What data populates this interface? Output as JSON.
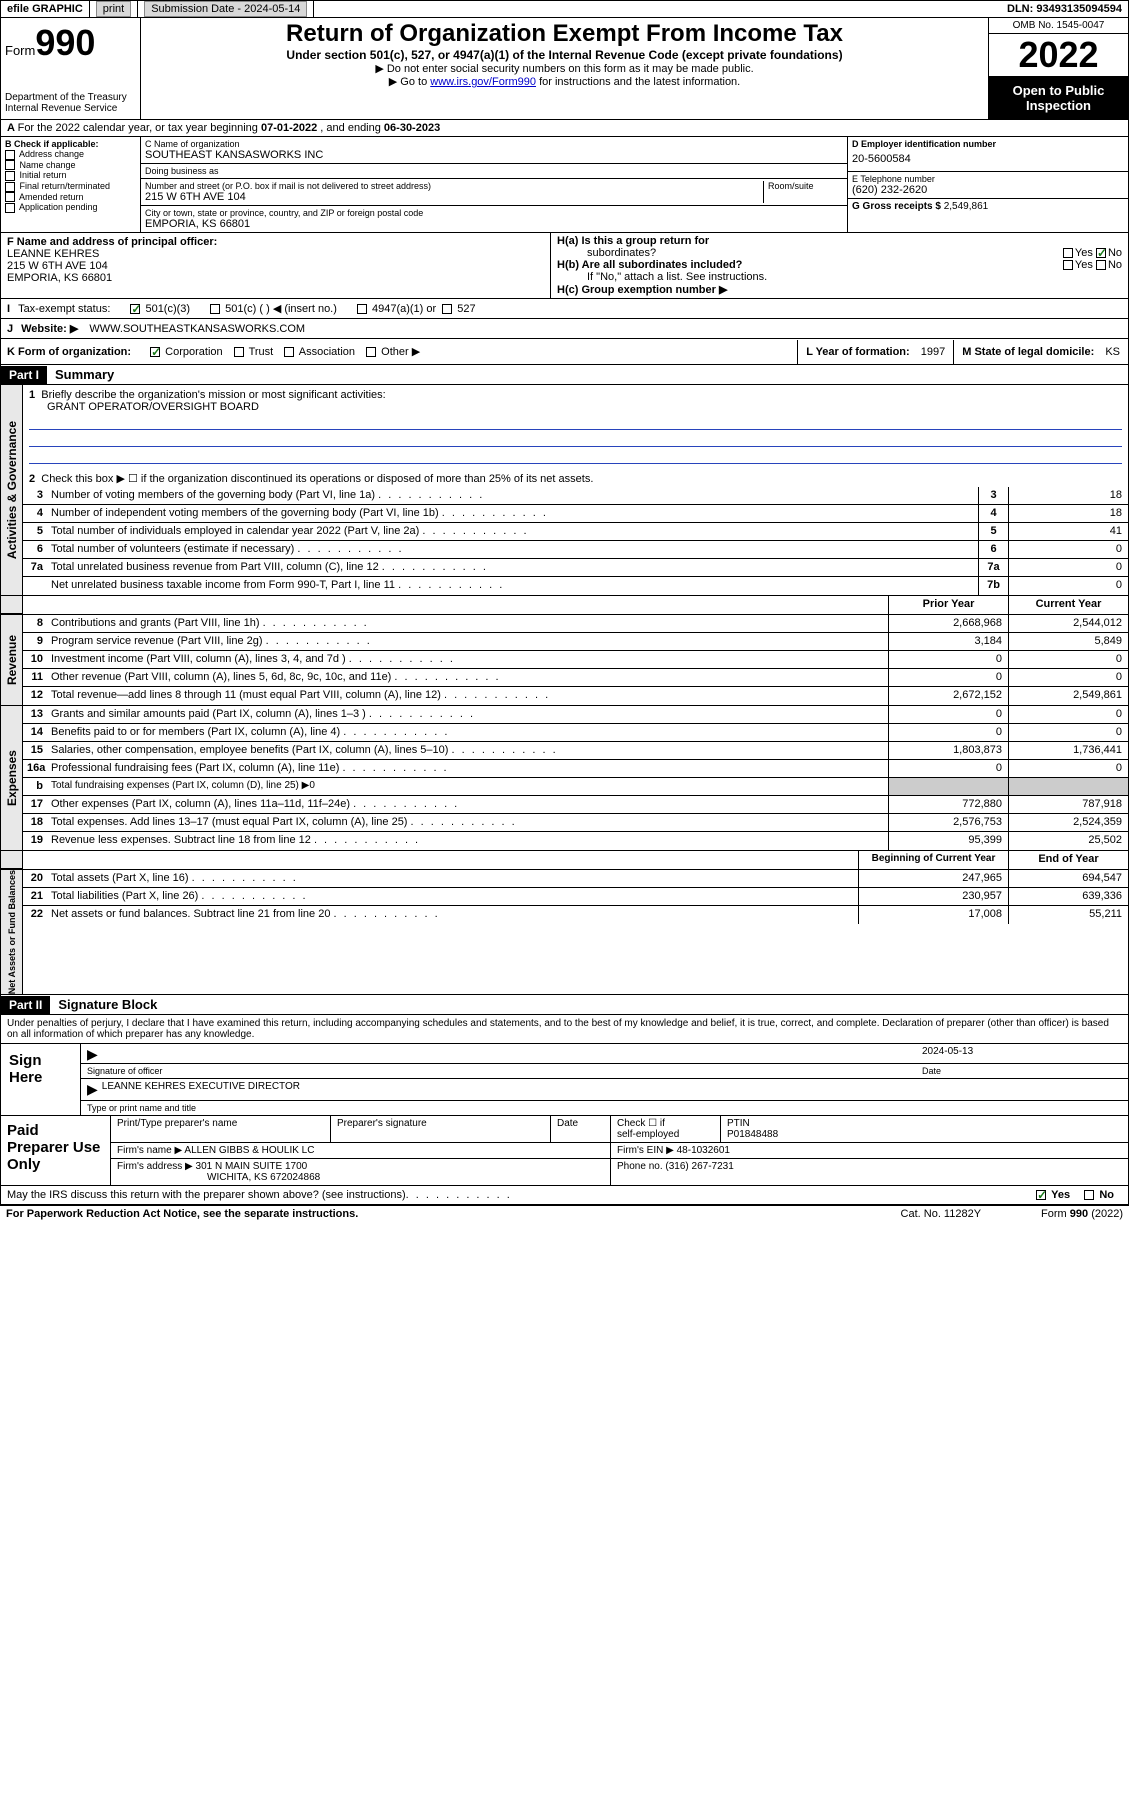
{
  "topbar": {
    "efile": "efile GRAPHIC",
    "print": "print",
    "subdate_lbl": "Submission Date - ",
    "subdate": "2024-05-14",
    "dln_lbl": "DLN: ",
    "dln": "93493135094594"
  },
  "header": {
    "form_word": "Form",
    "form_num": "990",
    "title": "Return of Organization Exempt From Income Tax",
    "sub": "Under section 501(c), 527, or 4947(a)(1) of the Internal Revenue Code (except private foundations)",
    "note1": "▶ Do not enter social security numbers on this form as it may be made public.",
    "note2_pre": "▶ Go to ",
    "note2_link": "www.irs.gov/Form990",
    "note2_post": " for instructions and the latest information.",
    "dept": "Department of the Treasury",
    "irs": "Internal Revenue Service",
    "omb": "OMB No. 1545-0047",
    "year": "2022",
    "otp": "Open to Public Inspection"
  },
  "periodA": {
    "text": "For the 2022 calendar year, or tax year beginning ",
    "begin": "07-01-2022",
    "mid": " , and ending ",
    "end": "06-30-2023"
  },
  "B": {
    "hdr": "B Check if applicable:",
    "items": [
      "Address change",
      "Name change",
      "Initial return",
      "Final return/terminated",
      "Amended return",
      "Application pending"
    ]
  },
  "C": {
    "name_lbl": "C Name of organization",
    "name": "SOUTHEAST KANSASWORKS INC",
    "dba_lbl": "Doing business as",
    "dba": "",
    "street_lbl": "Number and street (or P.O. box if mail is not delivered to street address)",
    "room_lbl": "Room/suite",
    "street": "215 W 6TH AVE 104",
    "city_lbl": "City or town, state or province, country, and ZIP or foreign postal code",
    "city": "EMPORIA, KS  66801"
  },
  "D": {
    "lbl": "D Employer identification number",
    "val": "20-5600584"
  },
  "E": {
    "lbl": "E Telephone number",
    "val": "(620) 232-2620"
  },
  "G": {
    "lbl": "G Gross receipts $",
    "val": "2,549,861"
  },
  "F": {
    "lbl": "F  Name and address of principal officer:",
    "name": "LEANNE KEHRES",
    "addr1": "215 W 6TH AVE 104",
    "addr2": "EMPORIA, KS  66801"
  },
  "H": {
    "a": "H(a)  Is this a group return for",
    "a2": "subordinates?",
    "yes": "Yes",
    "no": "No",
    "b": "H(b)  Are all subordinates included?",
    "b2": "If \"No,\" attach a list. See instructions.",
    "c": "H(c)  Group exemption number ▶"
  },
  "I": {
    "lbl": "Tax-exempt status:",
    "o1": "501(c)(3)",
    "o2": "501(c) (  ) ◀ (insert no.)",
    "o3": "4947(a)(1) or",
    "o4": "527"
  },
  "J": {
    "lbl": "Website: ▶",
    "val": "WWW.SOUTHEASTKANSASWORKS.COM"
  },
  "K": {
    "lbl": "K Form of organization:",
    "o1": "Corporation",
    "o2": "Trust",
    "o3": "Association",
    "o4": "Other ▶"
  },
  "L": {
    "lbl": "L Year of formation: ",
    "val": "1997"
  },
  "M": {
    "lbl": "M State of legal domicile: ",
    "val": "KS"
  },
  "part1": {
    "bar": "Part I",
    "title": "Summary"
  },
  "summary": {
    "l1": "Briefly describe the organization's mission or most significant activities:",
    "mission": "GRANT OPERATOR/OVERSIGHT BOARD",
    "l2": "Check this box ▶ ☐  if the organization discontinued its operations or disposed of more than 25% of its net assets.",
    "rows_top": [
      {
        "n": "3",
        "d": "Number of voting members of the governing body (Part VI, line 1a)",
        "box": "3",
        "v": "18"
      },
      {
        "n": "4",
        "d": "Number of independent voting members of the governing body (Part VI, line 1b)",
        "box": "4",
        "v": "18"
      },
      {
        "n": "5",
        "d": "Total number of individuals employed in calendar year 2022 (Part V, line 2a)",
        "box": "5",
        "v": "41"
      },
      {
        "n": "6",
        "d": "Total number of volunteers (estimate if necessary)",
        "box": "6",
        "v": "0"
      },
      {
        "n": "7a",
        "d": "Total unrelated business revenue from Part VIII, column (C), line 12",
        "box": "7a",
        "v": "0"
      },
      {
        "n": "",
        "d": "Net unrelated business taxable income from Form 990-T, Part I, line 11",
        "box": "7b",
        "v": "0"
      }
    ],
    "hdr_prior": "Prior Year",
    "hdr_curr": "Current Year",
    "revenue": [
      {
        "n": "8",
        "d": "Contributions and grants (Part VIII, line 1h)",
        "p": "2,668,968",
        "c": "2,544,012"
      },
      {
        "n": "9",
        "d": "Program service revenue (Part VIII, line 2g)",
        "p": "3,184",
        "c": "5,849"
      },
      {
        "n": "10",
        "d": "Investment income (Part VIII, column (A), lines 3, 4, and 7d )",
        "p": "0",
        "c": "0"
      },
      {
        "n": "11",
        "d": "Other revenue (Part VIII, column (A), lines 5, 6d, 8c, 9c, 10c, and 11e)",
        "p": "0",
        "c": "0"
      },
      {
        "n": "12",
        "d": "Total revenue—add lines 8 through 11 (must equal Part VIII, column (A), line 12)",
        "p": "2,672,152",
        "c": "2,549,861"
      }
    ],
    "expenses": [
      {
        "n": "13",
        "d": "Grants and similar amounts paid (Part IX, column (A), lines 1–3 )",
        "p": "0",
        "c": "0"
      },
      {
        "n": "14",
        "d": "Benefits paid to or for members (Part IX, column (A), line 4)",
        "p": "0",
        "c": "0"
      },
      {
        "n": "15",
        "d": "Salaries, other compensation, employee benefits (Part IX, column (A), lines 5–10)",
        "p": "1,803,873",
        "c": "1,736,441"
      },
      {
        "n": "16a",
        "d": "Professional fundraising fees (Part IX, column (A), line 11e)",
        "p": "0",
        "c": "0"
      },
      {
        "n": "b",
        "d": "Total fundraising expenses (Part IX, column (D), line 25) ▶0",
        "p": "",
        "c": ""
      },
      {
        "n": "17",
        "d": "Other expenses (Part IX, column (A), lines 11a–11d, 11f–24e)",
        "p": "772,880",
        "c": "787,918"
      },
      {
        "n": "18",
        "d": "Total expenses. Add lines 13–17 (must equal Part IX, column (A), line 25)",
        "p": "2,576,753",
        "c": "2,524,359"
      },
      {
        "n": "19",
        "d": "Revenue less expenses. Subtract line 18 from line 12",
        "p": "95,399",
        "c": "25,502"
      }
    ],
    "hdr_begin": "Beginning of Current Year",
    "hdr_end": "End of Year",
    "netassets": [
      {
        "n": "20",
        "d": "Total assets (Part X, line 16)",
        "p": "247,965",
        "c": "694,547"
      },
      {
        "n": "21",
        "d": "Total liabilities (Part X, line 26)",
        "p": "230,957",
        "c": "639,336"
      },
      {
        "n": "22",
        "d": "Net assets or fund balances. Subtract line 21 from line 20",
        "p": "17,008",
        "c": "55,211"
      }
    ]
  },
  "verts": {
    "g1": "Activities & Governance",
    "g2": "Revenue",
    "g3": "Expenses",
    "g4": "Net Assets or Fund Balances"
  },
  "part2": {
    "bar": "Part II",
    "title": "Signature Block",
    "decl": "Under penalties of perjury, I declare that I have examined this return, including accompanying schedules and statements, and to the best of my knowledge and belief, it is true, correct, and complete. Declaration of preparer (other than officer) is based on all information of which preparer has any knowledge."
  },
  "sign": {
    "here": "Sign Here",
    "sig_lbl": "Signature of officer",
    "date_lbl": "Date",
    "date": "2024-05-13",
    "name": "LEANNE KEHRES  EXECUTIVE DIRECTOR",
    "name_lbl": "Type or print name and title"
  },
  "paid": {
    "hdr": "Paid Preparer Use Only",
    "c1": "Print/Type preparer's name",
    "c2": "Preparer's signature",
    "c3": "Date",
    "c4a": "Check ☐ if",
    "c4b": "self-employed",
    "c5": "PTIN",
    "ptin": "P01848488",
    "firm_lbl": "Firm's name   ▶",
    "firm": "ALLEN GIBBS & HOULIK LC",
    "ein_lbl": "Firm's EIN ▶",
    "ein": "48-1032601",
    "addr_lbl": "Firm's address ▶",
    "addr1": "301 N MAIN SUITE 1700",
    "addr2": "WICHITA, KS  672024868",
    "phone_lbl": "Phone no.",
    "phone": "(316) 267-7231"
  },
  "discuss": {
    "q": "May the IRS discuss this return with the preparer shown above? (see instructions)",
    "yes": "Yes",
    "no": "No"
  },
  "footer": {
    "pra": "For Paperwork Reduction Act Notice, see the separate instructions.",
    "cat": "Cat. No. 11282Y",
    "form": "Form 990 (2022)"
  }
}
